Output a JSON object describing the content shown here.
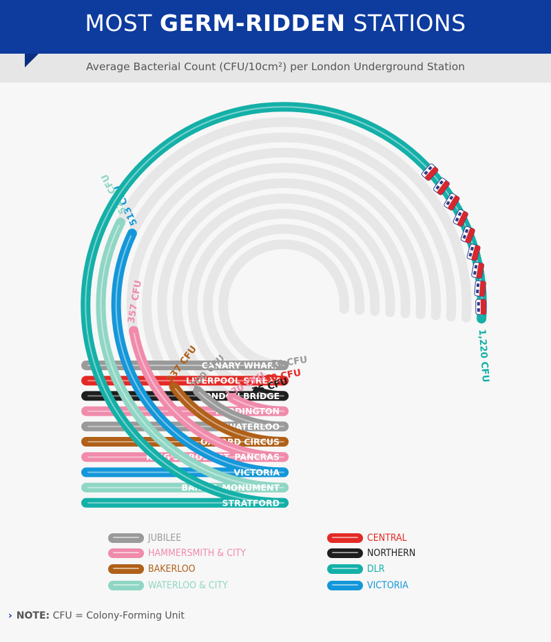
{
  "header": {
    "title_part1": "MOST ",
    "title_part2": "GERM-RIDDEN",
    "title_part3": " STATIONS",
    "subtitle": "Average Bacterial Count (CFU/10cm²) per London Underground Station",
    "background_color": "#0d3b9e"
  },
  "chart_data": {
    "type": "radial-bar",
    "unit": "CFU",
    "max_value": 1220,
    "bars": [
      {
        "station": "CANARY WHARF",
        "value": 40,
        "value_label": "40 CFU",
        "line": "JUBILEE"
      },
      {
        "station": "LIVERPOOL STREET",
        "value": 50,
        "value_label": "50 CFU",
        "line": "CENTRAL"
      },
      {
        "station": "LONDON BRIDGE",
        "value": 75,
        "value_label": "75 CFU",
        "line": "NORTHERN"
      },
      {
        "station": "PADDINGTON",
        "value": 130,
        "value_label": "130 CFU",
        "line": "HAMMERSMITH & CITY"
      },
      {
        "station": "WATERLOO",
        "value": 200,
        "value_label": "200 CFU",
        "line": "JUBILEE"
      },
      {
        "station": "OXFORD CIRCUS",
        "value": 237,
        "value_label": "237 CFU",
        "line": "BAKERLOO"
      },
      {
        "station": "KING'S CROSS ST. PANCRAS",
        "value": 357,
        "value_label": "357 CFU",
        "line": "HAMMERSMITH & CITY"
      },
      {
        "station": "VICTORIA",
        "value": 513,
        "value_label": "513 CFU",
        "line": "VICTORIA"
      },
      {
        "station": "BANK & MONUMENT",
        "value": 520,
        "value_label": "520 CFU",
        "line": "WATERLOO & CITY"
      },
      {
        "station": "STRATFORD",
        "value": 1220,
        "value_label": "1,220 CFU",
        "line": "DLR"
      }
    ],
    "legend": [
      {
        "label": "JUBILEE",
        "color": "#9a9a9a"
      },
      {
        "label": "CENTRAL",
        "color": "#e32a26"
      },
      {
        "label": "HAMMERSMITH & CITY",
        "color": "#f08bab"
      },
      {
        "label": "NORTHERN",
        "color": "#1e1e1e"
      },
      {
        "label": "BAKERLOO",
        "color": "#b06018"
      },
      {
        "label": "DLR",
        "color": "#14b0a8"
      },
      {
        "label": "WATERLOO & CITY",
        "color": "#8fd6c4"
      },
      {
        "label": "VICTORIA",
        "color": "#1497d9"
      }
    ],
    "legend_placement": "bottom"
  },
  "note": {
    "key": "NOTE:",
    "text": " CFU = Colony-Forming Unit"
  }
}
